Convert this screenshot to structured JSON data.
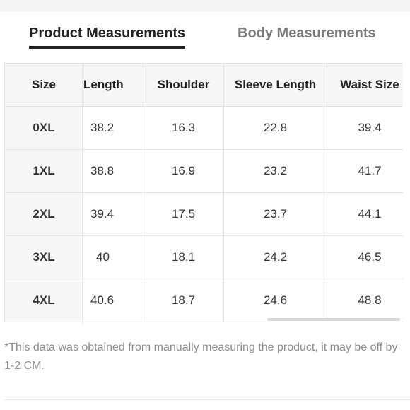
{
  "tabs": {
    "product": "Product Measurements",
    "body": "Body Measurements"
  },
  "table": {
    "headers": [
      "Size",
      "Length",
      "Shoulder",
      "Sleeve Length",
      "Waist Size"
    ],
    "rows": [
      [
        "0XL",
        "38.2",
        "16.3",
        "22.8",
        "39.4"
      ],
      [
        "1XL",
        "38.8",
        "16.9",
        "23.2",
        "41.7"
      ],
      [
        "2XL",
        "39.4",
        "17.5",
        "23.7",
        "44.1"
      ],
      [
        "3XL",
        "40",
        "18.1",
        "24.2",
        "46.5"
      ],
      [
        "4XL",
        "40.6",
        "18.7",
        "24.6",
        "48.8"
      ]
    ]
  },
  "footnote": "*This data was obtained from manually measuring the product, it may be off by 1-2 CM.",
  "colors": {
    "active_tab": "#222222",
    "inactive_tab": "#7a7a7a",
    "header_bg": "#f6f6f6",
    "border": "#e3e3e3"
  }
}
